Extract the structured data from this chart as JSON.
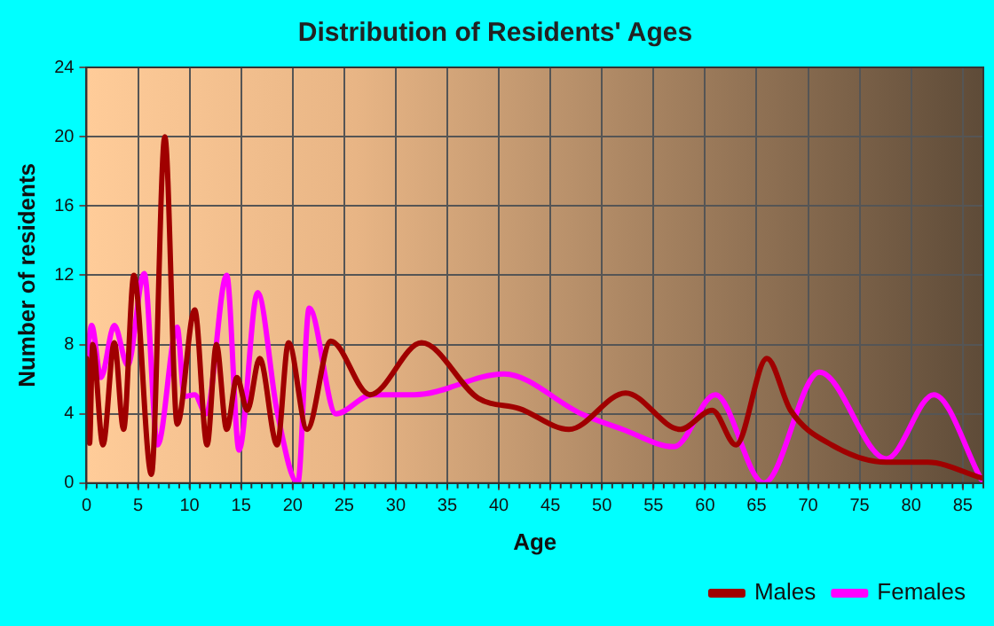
{
  "chart_data": {
    "type": "line",
    "title": "Distribution of Residents' Ages",
    "xlabel": "Age",
    "ylabel": "Number of residents",
    "xlim": [
      0,
      87
    ],
    "xticks": [
      0,
      5,
      10,
      15,
      20,
      25,
      30,
      35,
      40,
      45,
      50,
      55,
      60,
      65,
      70,
      75,
      80,
      85
    ],
    "ylim": [
      0,
      24
    ],
    "yticks": [
      0,
      4,
      8,
      12,
      16,
      20,
      24
    ],
    "grid": true,
    "legend": "bottom right",
    "marker": "none",
    "line_style": "solid",
    "series": [
      {
        "name": "Males",
        "color": "#a00000",
        "x": [
          0,
          0.3,
          0.6,
          1.6,
          2.7,
          3.6,
          4.6,
          6.3,
          7.6,
          8.8,
          10.5,
          11.7,
          12.6,
          13.6,
          14.6,
          15.6,
          16.8,
          18.5,
          19.6,
          21.4,
          23.7,
          27.5,
          32.5,
          38,
          42,
          46.8,
          52.3,
          57.6,
          60.7,
          63,
          66,
          68.3,
          72.3,
          77.6,
          81.6,
          86.8
        ],
        "values": [
          7.2,
          2.3,
          8,
          2.2,
          8.1,
          3.1,
          12,
          0.5,
          20,
          3.4,
          10,
          2.2,
          8,
          3.1,
          6.1,
          4.2,
          7.2,
          2.2,
          8.1,
          3.1,
          8.2,
          5.1,
          8.1,
          4.9,
          4.3,
          3.1,
          5.2,
          3.1,
          4.2,
          2.2,
          7.2,
          4.2,
          2.2,
          1.2,
          1.2,
          0.3
        ]
      },
      {
        "name": "Females",
        "color": "#ff00ff",
        "x": [
          0,
          0.5,
          1.4,
          2.7,
          4,
          5.6,
          6.9,
          8.8,
          9.5,
          10.5,
          11.6,
          13.6,
          14.8,
          16.6,
          18.5,
          20.5,
          21.6,
          24.2,
          27.7,
          31.8,
          40.5,
          48,
          52,
          57,
          61,
          65.7,
          71.1,
          77.6,
          82.2,
          86.8
        ],
        "values": [
          7,
          9.1,
          6.1,
          9.1,
          6.8,
          12.1,
          2.2,
          9,
          5,
          5.1,
          4,
          12,
          1.9,
          11,
          4.1,
          0,
          10.1,
          4,
          5.1,
          5.1,
          6.3,
          4,
          3.1,
          2.1,
          5.1,
          0,
          6.4,
          1.4,
          5.1,
          0.2
        ]
      }
    ]
  }
}
